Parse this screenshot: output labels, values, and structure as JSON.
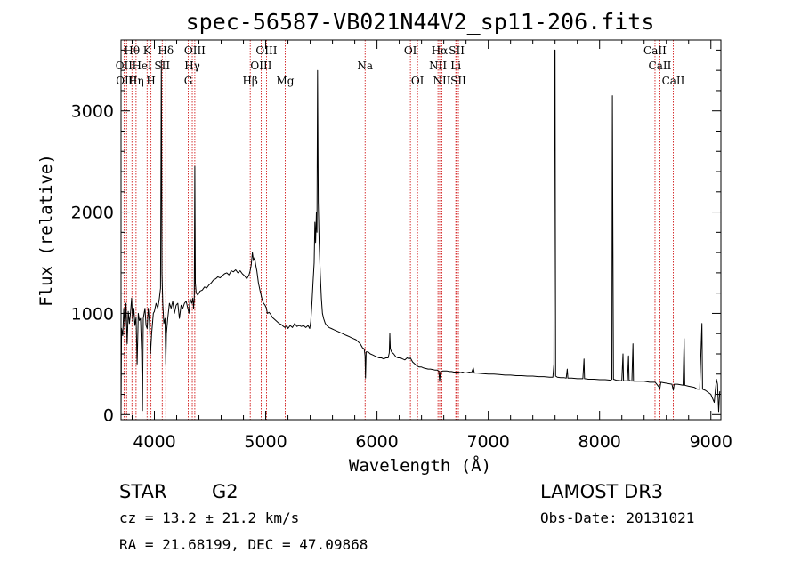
{
  "chart_data": {
    "type": "line",
    "title": "spec-56587-VB021N44V2_sp11-206.fits",
    "xlabel": "Wavelength (Å)",
    "ylabel": "Flux (relative)",
    "xlim": [
      3700,
      9090
    ],
    "ylim": [
      -50,
      3700
    ],
    "xticks": [
      4000,
      5000,
      6000,
      7000,
      8000,
      9000
    ],
    "yticks": [
      0,
      1000,
      2000,
      3000
    ],
    "xtick_labels": [
      "4000",
      "5000",
      "6000",
      "7000",
      "8000",
      "9000"
    ],
    "ytick_labels": [
      "0",
      "1000",
      "2000",
      "3000"
    ],
    "spectrum": [
      [
        3700,
        0
      ],
      [
        3705,
        850
      ],
      [
        3715,
        780
      ],
      [
        3725,
        1050
      ],
      [
        3735,
        830
      ],
      [
        3745,
        1100
      ],
      [
        3755,
        700
      ],
      [
        3765,
        1020
      ],
      [
        3775,
        900
      ],
      [
        3785,
        1000
      ],
      [
        3795,
        1150
      ],
      [
        3805,
        920
      ],
      [
        3815,
        1050
      ],
      [
        3825,
        880
      ],
      [
        3835,
        960
      ],
      [
        3845,
        500
      ],
      [
        3855,
        1000
      ],
      [
        3865,
        930
      ],
      [
        3875,
        950
      ],
      [
        3885,
        620
      ],
      [
        3893,
        40
      ],
      [
        3900,
        950
      ],
      [
        3915,
        1050
      ],
      [
        3925,
        880
      ],
      [
        3935,
        850
      ],
      [
        3945,
        1050
      ],
      [
        3955,
        920
      ],
      [
        3965,
        600
      ],
      [
        3975,
        800
      ],
      [
        3990,
        1000
      ],
      [
        4000,
        1020
      ],
      [
        4015,
        1100
      ],
      [
        4030,
        1050
      ],
      [
        4045,
        1150
      ],
      [
        4055,
        1250
      ],
      [
        4062,
        3500
      ],
      [
        4068,
        1400
      ],
      [
        4075,
        1100
      ],
      [
        4085,
        900
      ],
      [
        4095,
        950
      ],
      [
        4102,
        500
      ],
      [
        4108,
        800
      ],
      [
        4120,
        950
      ],
      [
        4135,
        1100
      ],
      [
        4150,
        1050
      ],
      [
        4165,
        1120
      ],
      [
        4180,
        1000
      ],
      [
        4195,
        1080
      ],
      [
        4210,
        1100
      ],
      [
        4225,
        950
      ],
      [
        4240,
        1080
      ],
      [
        4255,
        1050
      ],
      [
        4270,
        1100
      ],
      [
        4285,
        1120
      ],
      [
        4300,
        1050
      ],
      [
        4310,
        1000
      ],
      [
        4320,
        1150
      ],
      [
        4335,
        1100
      ],
      [
        4345,
        1150
      ],
      [
        4352,
        1050
      ],
      [
        4358,
        1150
      ],
      [
        4363,
        2450
      ],
      [
        4368,
        1300
      ],
      [
        4375,
        1200
      ],
      [
        4390,
        1180
      ],
      [
        4410,
        1220
      ],
      [
        4430,
        1230
      ],
      [
        4450,
        1260
      ],
      [
        4470,
        1250
      ],
      [
        4490,
        1280
      ],
      [
        4510,
        1300
      ],
      [
        4530,
        1330
      ],
      [
        4550,
        1340
      ],
      [
        4570,
        1360
      ],
      [
        4590,
        1350
      ],
      [
        4610,
        1370
      ],
      [
        4630,
        1390
      ],
      [
        4650,
        1400
      ],
      [
        4670,
        1380
      ],
      [
        4690,
        1420
      ],
      [
        4710,
        1410
      ],
      [
        4730,
        1430
      ],
      [
        4750,
        1400
      ],
      [
        4770,
        1420
      ],
      [
        4790,
        1390
      ],
      [
        4810,
        1370
      ],
      [
        4830,
        1340
      ],
      [
        4850,
        1380
      ],
      [
        4860,
        1420
      ],
      [
        4870,
        1480
      ],
      [
        4880,
        1600
      ],
      [
        4890,
        1520
      ],
      [
        4900,
        1550
      ],
      [
        4910,
        1480
      ],
      [
        4920,
        1420
      ],
      [
        4935,
        1300
      ],
      [
        4950,
        1220
      ],
      [
        4965,
        1150
      ],
      [
        4980,
        1100
      ],
      [
        4995,
        1080
      ],
      [
        5007,
        1050
      ],
      [
        5015,
        1000
      ],
      [
        5030,
        1010
      ],
      [
        5045,
        990
      ],
      [
        5060,
        960
      ],
      [
        5080,
        940
      ],
      [
        5100,
        920
      ],
      [
        5120,
        900
      ],
      [
        5140,
        890
      ],
      [
        5160,
        870
      ],
      [
        5175,
        860
      ],
      [
        5190,
        880
      ],
      [
        5200,
        850
      ],
      [
        5220,
        880
      ],
      [
        5240,
        860
      ],
      [
        5260,
        900
      ],
      [
        5280,
        870
      ],
      [
        5300,
        880
      ],
      [
        5320,
        870
      ],
      [
        5340,
        880
      ],
      [
        5360,
        860
      ],
      [
        5380,
        880
      ],
      [
        5395,
        850
      ],
      [
        5405,
        920
      ],
      [
        5415,
        1100
      ],
      [
        5425,
        1300
      ],
      [
        5435,
        1500
      ],
      [
        5442,
        1900
      ],
      [
        5448,
        1700
      ],
      [
        5455,
        2000
      ],
      [
        5460,
        1800
      ],
      [
        5466,
        3400
      ],
      [
        5472,
        2100
      ],
      [
        5480,
        1700
      ],
      [
        5490,
        1400
      ],
      [
        5500,
        1150
      ],
      [
        5510,
        1000
      ],
      [
        5520,
        950
      ],
      [
        5535,
        900
      ],
      [
        5550,
        880
      ],
      [
        5570,
        860
      ],
      [
        5590,
        850
      ],
      [
        5610,
        840
      ],
      [
        5630,
        830
      ],
      [
        5650,
        820
      ],
      [
        5670,
        810
      ],
      [
        5690,
        800
      ],
      [
        5710,
        790
      ],
      [
        5730,
        780
      ],
      [
        5750,
        770
      ],
      [
        5770,
        760
      ],
      [
        5790,
        750
      ],
      [
        5810,
        740
      ],
      [
        5830,
        720
      ],
      [
        5850,
        700
      ],
      [
        5870,
        660
      ],
      [
        5885,
        650
      ],
      [
        5893,
        580
      ],
      [
        5897,
        360
      ],
      [
        5902,
        620
      ],
      [
        5920,
        620
      ],
      [
        5940,
        600
      ],
      [
        5960,
        590
      ],
      [
        5980,
        580
      ],
      [
        6000,
        570
      ],
      [
        6020,
        560
      ],
      [
        6040,
        560
      ],
      [
        6060,
        550
      ],
      [
        6080,
        560
      ],
      [
        6100,
        560
      ],
      [
        6110,
        610
      ],
      [
        6115,
        800
      ],
      [
        6120,
        650
      ],
      [
        6130,
        620
      ],
      [
        6150,
        600
      ],
      [
        6170,
        570
      ],
      [
        6190,
        560
      ],
      [
        6210,
        560
      ],
      [
        6230,
        550
      ],
      [
        6250,
        540
      ],
      [
        6270,
        560
      ],
      [
        6290,
        550
      ],
      [
        6300,
        560
      ],
      [
        6320,
        520
      ],
      [
        6340,
        500
      ],
      [
        6360,
        480
      ],
      [
        6380,
        470
      ],
      [
        6400,
        470
      ],
      [
        6420,
        460
      ],
      [
        6440,
        455
      ],
      [
        6460,
        450
      ],
      [
        6480,
        450
      ],
      [
        6500,
        445
      ],
      [
        6520,
        440
      ],
      [
        6540,
        440
      ],
      [
        6555,
        430
      ],
      [
        6563,
        330
      ],
      [
        6570,
        420
      ],
      [
        6590,
        430
      ],
      [
        6610,
        430
      ],
      [
        6630,
        430
      ],
      [
        6650,
        425
      ],
      [
        6670,
        425
      ],
      [
        6690,
        420
      ],
      [
        6710,
        420
      ],
      [
        6730,
        420
      ],
      [
        6750,
        415
      ],
      [
        6770,
        420
      ],
      [
        6790,
        410
      ],
      [
        6810,
        415
      ],
      [
        6830,
        420
      ],
      [
        6850,
        415
      ],
      [
        6865,
        460
      ],
      [
        6875,
        410
      ],
      [
        6900,
        410
      ],
      [
        6950,
        405
      ],
      [
        7000,
        400
      ],
      [
        7050,
        400
      ],
      [
        7100,
        395
      ],
      [
        7150,
        390
      ],
      [
        7200,
        390
      ],
      [
        7250,
        385
      ],
      [
        7300,
        385
      ],
      [
        7350,
        380
      ],
      [
        7400,
        380
      ],
      [
        7450,
        375
      ],
      [
        7500,
        375
      ],
      [
        7550,
        370
      ],
      [
        7580,
        370
      ],
      [
        7590,
        500
      ],
      [
        7595,
        3600
      ],
      [
        7600,
        3600
      ],
      [
        7605,
        380
      ],
      [
        7620,
        370
      ],
      [
        7650,
        365
      ],
      [
        7680,
        365
      ],
      [
        7700,
        360
      ],
      [
        7710,
        450
      ],
      [
        7715,
        360
      ],
      [
        7750,
        360
      ],
      [
        7800,
        355
      ],
      [
        7850,
        355
      ],
      [
        7860,
        550
      ],
      [
        7865,
        355
      ],
      [
        7900,
        350
      ],
      [
        7950,
        350
      ],
      [
        8000,
        345
      ],
      [
        8050,
        345
      ],
      [
        8100,
        340
      ],
      [
        8110,
        350
      ],
      [
        8115,
        3150
      ],
      [
        8120,
        1700
      ],
      [
        8125,
        350
      ],
      [
        8150,
        340
      ],
      [
        8200,
        335
      ],
      [
        8210,
        600
      ],
      [
        8215,
        335
      ],
      [
        8250,
        335
      ],
      [
        8260,
        580
      ],
      [
        8265,
        340
      ],
      [
        8290,
        330
      ],
      [
        8300,
        700
      ],
      [
        8305,
        330
      ],
      [
        8350,
        330
      ],
      [
        8400,
        330
      ],
      [
        8450,
        320
      ],
      [
        8500,
        320
      ],
      [
        8542,
        260
      ],
      [
        8550,
        320
      ],
      [
        8600,
        310
      ],
      [
        8650,
        300
      ],
      [
        8662,
        240
      ],
      [
        8670,
        300
      ],
      [
        8700,
        300
      ],
      [
        8750,
        290
      ],
      [
        8760,
        750
      ],
      [
        8765,
        290
      ],
      [
        8800,
        280
      ],
      [
        8850,
        270
      ],
      [
        8880,
        250
      ],
      [
        8900,
        250
      ],
      [
        8920,
        900
      ],
      [
        8925,
        250
      ],
      [
        8950,
        240
      ],
      [
        9000,
        200
      ],
      [
        9030,
        120
      ],
      [
        9050,
        350
      ],
      [
        9060,
        300
      ],
      [
        9070,
        30
      ],
      [
        9080,
        230
      ]
    ],
    "line_labels": [
      {
        "label": "Hθ",
        "wavelength": 3798,
        "row": 0
      },
      {
        "label": "OII",
        "wavelength": 3727,
        "row": 1
      },
      {
        "label": "OIII",
        "wavelength": 3750,
        "row": 2
      },
      {
        "label": "HeI",
        "wavelength": 3889,
        "row": 1
      },
      {
        "label": "Hη",
        "wavelength": 3835,
        "row": 2
      },
      {
        "label": "K",
        "wavelength": 3934,
        "row": 0
      },
      {
        "label": "SII",
        "wavelength": 4070,
        "row": 1
      },
      {
        "label": "H",
        "wavelength": 3969,
        "row": 2
      },
      {
        "label": "Hδ",
        "wavelength": 4102,
        "row": 0
      },
      {
        "label": "OIII",
        "wavelength": 4363,
        "row": 0
      },
      {
        "label": "Hγ",
        "wavelength": 4340,
        "row": 1
      },
      {
        "label": "G",
        "wavelength": 4304,
        "row": 2
      },
      {
        "label": "Hβ",
        "wavelength": 4861,
        "row": 2
      },
      {
        "label": "OIII",
        "wavelength": 5007,
        "row": 0
      },
      {
        "label": "OIII",
        "wavelength": 4959,
        "row": 1
      },
      {
        "label": "Mg",
        "wavelength": 5175,
        "row": 2
      },
      {
        "label": "Na",
        "wavelength": 5893,
        "row": 1
      },
      {
        "label": "OI",
        "wavelength": 6300,
        "row": 0
      },
      {
        "label": "OI",
        "wavelength": 6364,
        "row": 2
      },
      {
        "label": "Hα",
        "wavelength": 6563,
        "row": 0
      },
      {
        "label": "SII",
        "wavelength": 6716,
        "row": 0
      },
      {
        "label": "NII",
        "wavelength": 6548,
        "row": 1
      },
      {
        "label": "Li",
        "wavelength": 6708,
        "row": 1
      },
      {
        "label": "NII",
        "wavelength": 6583,
        "row": 2
      },
      {
        "label": "SII",
        "wavelength": 6731,
        "row": 2
      },
      {
        "label": "CaII",
        "wavelength": 8498,
        "row": 0
      },
      {
        "label": "CaII",
        "wavelength": 8542,
        "row": 1
      },
      {
        "label": "CaII",
        "wavelength": 8662,
        "row": 2
      }
    ],
    "line_marker_color": "#cc0000"
  },
  "info": {
    "class_label": "STAR",
    "subclass": "G2",
    "survey": "LAMOST DR3",
    "redshift": "cz = 13.2 ± 21.2 km/s",
    "obs_date": "Obs-Date: 20131021",
    "coords": "RA =  21.68199, DEC =  47.09868"
  }
}
